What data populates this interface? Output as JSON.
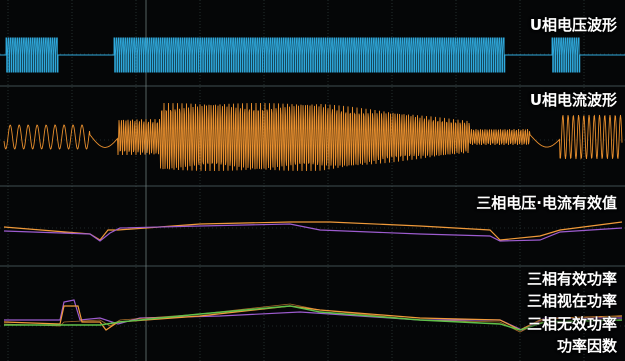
{
  "labels": {
    "voltage_wave": "U相电压波形",
    "current_wave": "U相电流波形",
    "rms": "三相电压·电流有效值",
    "active_power": "三相有效功率",
    "apparent_power": "三相视在功率",
    "reactive_power": "三相无效功率",
    "power_factor": "功率因数"
  },
  "colors": {
    "background": "#050607",
    "grid": "#3a4a4a",
    "voltage": "#2fa9dc",
    "current": "#e88f2e",
    "rms_a": "#f09a3a",
    "rms_b": "#9d5ccf",
    "pf": "#5fc14a"
  }
}
